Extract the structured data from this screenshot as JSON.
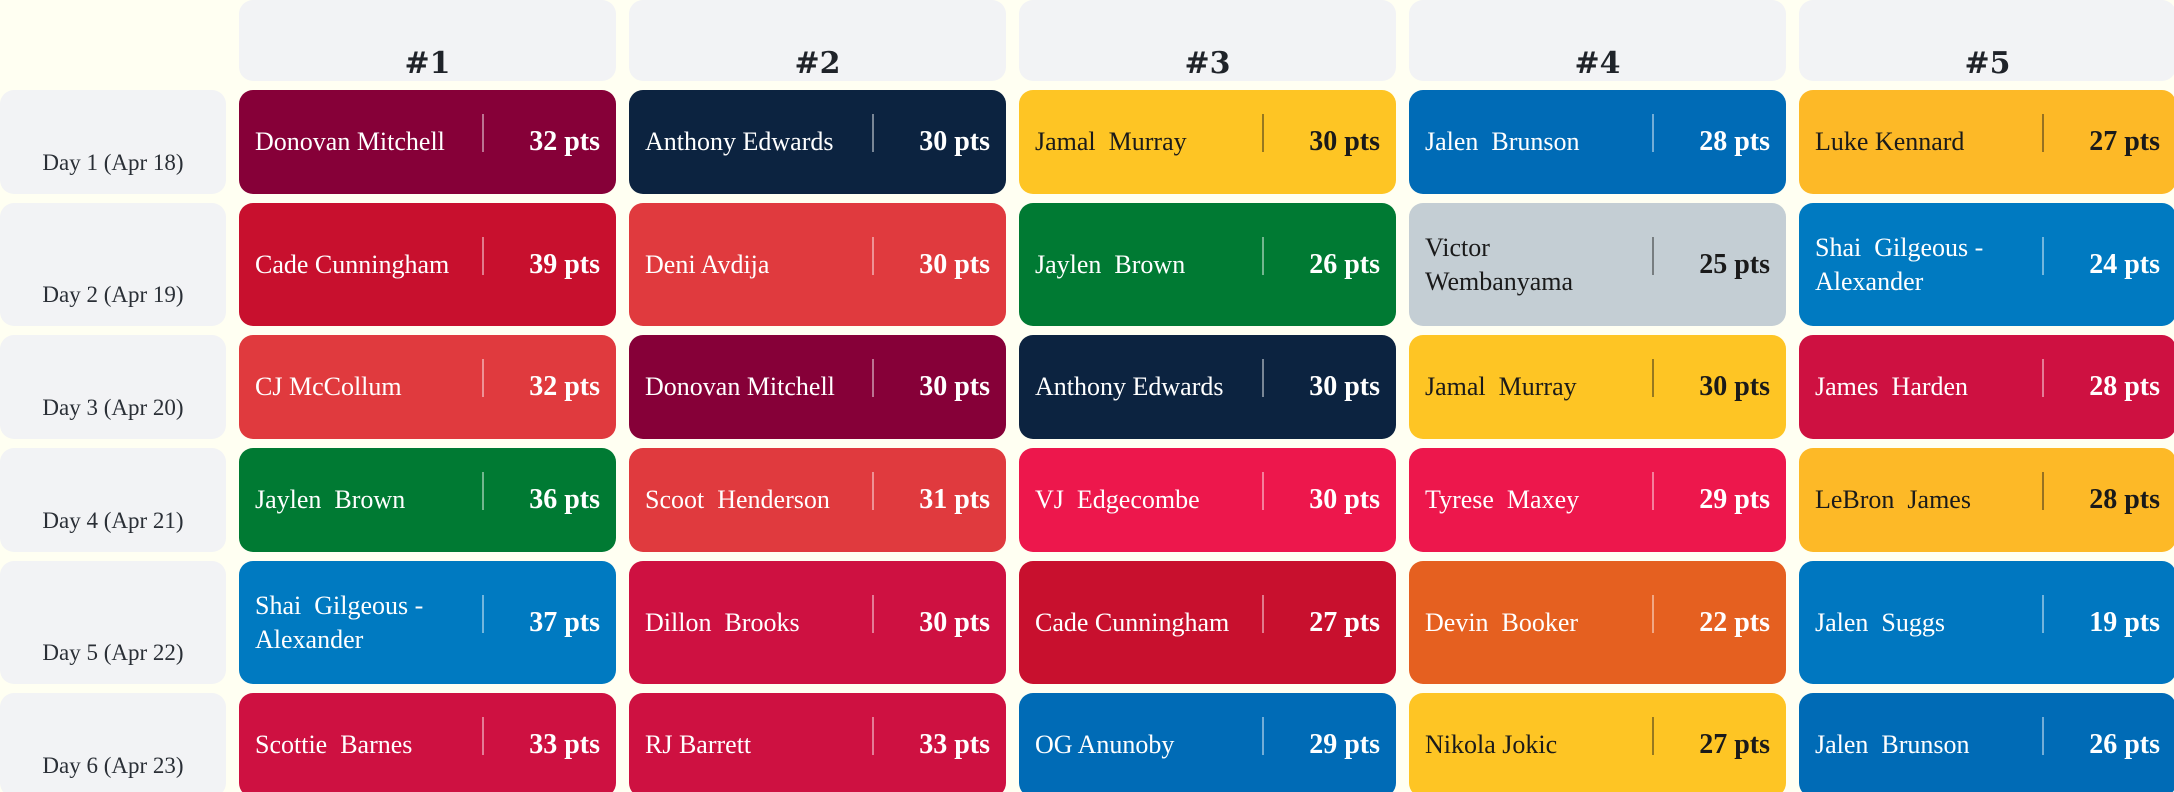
{
  "columns": [
    "#1",
    "#2",
    "#3",
    "#4",
    "#5"
  ],
  "rows": [
    {
      "label": "Day 1 (Apr 18)",
      "cells": [
        {
          "player": "Donovan Mitchell",
          "pts": "32 pts",
          "bg": "#860038",
          "fg": "#FFFFFF"
        },
        {
          "player": "Anthony Edwards",
          "pts": "30 pts",
          "bg": "#0C2340",
          "fg": "#FFFFFF"
        },
        {
          "player": "Jamal  Murray",
          "pts": "30 pts",
          "bg": "#FEC524",
          "fg": "#1A1A1A"
        },
        {
          "player": "Jalen  Brunson",
          "pts": "28 pts",
          "bg": "#006BB6",
          "fg": "#FFFFFF"
        },
        {
          "player": "Luke Kennard",
          "pts": "27 pts",
          "bg": "#FDB927",
          "fg": "#1A1A1A"
        }
      ]
    },
    {
      "label": "Day 2 (Apr 19)",
      "cells": [
        {
          "player": "Cade Cunningham",
          "pts": "39 pts",
          "bg": "#C8102E",
          "fg": "#FFFFFF"
        },
        {
          "player": "Deni Avdija",
          "pts": "30 pts",
          "bg": "#E03A3E",
          "fg": "#FFFFFF"
        },
        {
          "player": "Jaylen  Brown",
          "pts": "26 pts",
          "bg": "#007A33",
          "fg": "#FFFFFF"
        },
        {
          "player": "Victor  Wembanyama",
          "pts": "25 pts",
          "bg": "#C4CED4",
          "fg": "#1A1A1A"
        },
        {
          "player": "Shai  Gilgeous - Alexander",
          "pts": "24 pts",
          "bg": "#007AC1",
          "fg": "#FFFFFF"
        }
      ]
    },
    {
      "label": "Day 3 (Apr 20)",
      "cells": [
        {
          "player": "CJ McCollum",
          "pts": "32 pts",
          "bg": "#E03A3E",
          "fg": "#FFFFFF"
        },
        {
          "player": "Donovan Mitchell",
          "pts": "30 pts",
          "bg": "#860038",
          "fg": "#FFFFFF"
        },
        {
          "player": "Anthony Edwards",
          "pts": "30 pts",
          "bg": "#0C2340",
          "fg": "#FFFFFF"
        },
        {
          "player": "Jamal  Murray",
          "pts": "30 pts",
          "bg": "#FEC524",
          "fg": "#1A1A1A"
        },
        {
          "player": "James  Harden",
          "pts": "28 pts",
          "bg": "#CE1141",
          "fg": "#FFFFFF"
        }
      ]
    },
    {
      "label": "Day 4 (Apr 21)",
      "cells": [
        {
          "player": "Jaylen  Brown",
          "pts": "36 pts",
          "bg": "#007A33",
          "fg": "#FFFFFF"
        },
        {
          "player": "Scoot  Henderson",
          "pts": "31 pts",
          "bg": "#E03A3E",
          "fg": "#FFFFFF"
        },
        {
          "player": "VJ  Edgecombe",
          "pts": "30 pts",
          "bg": "#ED174C",
          "fg": "#FFFFFF"
        },
        {
          "player": "Tyrese  Maxey",
          "pts": "29 pts",
          "bg": "#ED174C",
          "fg": "#FFFFFF"
        },
        {
          "player": "LeBron  James",
          "pts": "28 pts",
          "bg": "#FDB927",
          "fg": "#1A1A1A"
        }
      ]
    },
    {
      "label": "Day 5 (Apr 22)",
      "cells": [
        {
          "player": "Shai  Gilgeous - Alexander",
          "pts": "37 pts",
          "bg": "#007AC1",
          "fg": "#FFFFFF"
        },
        {
          "player": "Dillon  Brooks",
          "pts": "30 pts",
          "bg": "#CE1141",
          "fg": "#FFFFFF"
        },
        {
          "player": "Cade Cunningham",
          "pts": "27 pts",
          "bg": "#C8102E",
          "fg": "#FFFFFF"
        },
        {
          "player": "Devin  Booker",
          "pts": "22 pts",
          "bg": "#E56020",
          "fg": "#FFFFFF"
        },
        {
          "player": "Jalen  Suggs",
          "pts": "19 pts",
          "bg": "#0077C0",
          "fg": "#FFFFFF"
        }
      ]
    },
    {
      "label": "Day 6 (Apr 23)",
      "cells": [
        {
          "player": "Scottie  Barnes",
          "pts": "33 pts",
          "bg": "#CE1141",
          "fg": "#FFFFFF"
        },
        {
          "player": "RJ Barrett",
          "pts": "33 pts",
          "bg": "#CE1141",
          "fg": "#FFFFFF"
        },
        {
          "player": "OG Anunoby",
          "pts": "29 pts",
          "bg": "#006BB6",
          "fg": "#FFFFFF"
        },
        {
          "player": "Nikola Jokic",
          "pts": "27 pts",
          "bg": "#FEC524",
          "fg": "#1A1A1A"
        },
        {
          "player": "Jalen  Brunson",
          "pts": "26 pts",
          "bg": "#006BB6",
          "fg": "#FFFFFF"
        }
      ]
    }
  ]
}
